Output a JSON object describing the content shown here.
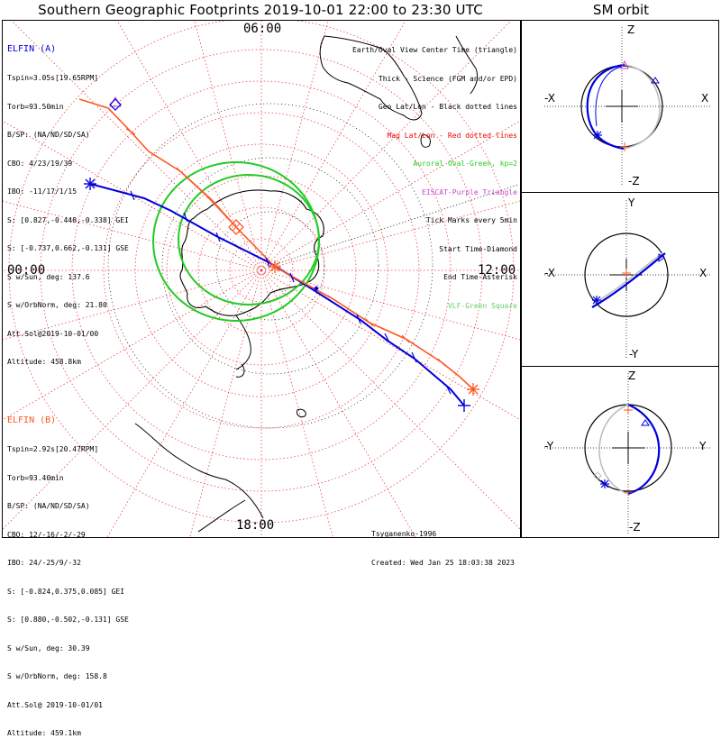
{
  "title": "Southern Geographic Footprints 2019-10-01 22:00 to 23:30 UTC",
  "sm_title": "SM orbit",
  "colors": {
    "elfin_a": "#0000dd",
    "elfin_b": "#ff5522",
    "oval": "#22cc22",
    "grid": "#ee4444",
    "eiscat": "#cc44cc",
    "vlf": "#66cc66"
  },
  "hour_labels": {
    "top": "06:00",
    "left": "00:00",
    "right": "12:00",
    "bottom": "18:00"
  },
  "elfin_a": {
    "name": "ELFIN (A)",
    "lines": [
      "Tspin=3.05s[19.65RPM]",
      "Torb=93.50min",
      "B/SP: (NA/ND/SD/SA)",
      "CBO: 4/23/19/39",
      "IBO: -11/17/1/15",
      "S: [0.827,-0.448,-0.338] GEI",
      "S: [-0.737,0.662,-0.131] GSE",
      "S w/Sun, deg: 137.6",
      "S w/OrbNorm, deg: 21.80",
      "Att.Sol@2019-10-01/00",
      "Altitude: 458.8km"
    ]
  },
  "elfin_b": {
    "name": "ELFIN (B)",
    "lines": [
      "Tspin=2.92s[20.47RPM]",
      "Torb=93.40min",
      "B/SP: (NA/ND/SD/SA)",
      "CBO: 12/-16/-2/-29",
      "IBO: 24/-25/9/-32",
      "S: [-0.824,0.375,0.085] GEI",
      "S: [0.880,-0.502,-0.131] GSE",
      "S w/Sun, deg: 30.39",
      "S w/OrbNorm, deg: 158.8",
      "Att.Sol@ 2019-10-01/01",
      "Altitude: 459.1km"
    ]
  },
  "legend": [
    {
      "text": "Earth/Oval View Center Time (triangle)",
      "color": "#000000"
    },
    {
      "text": "Thick - Science (FGM and/or EPD)",
      "color": "#000000"
    },
    {
      "text": "Geo Lat/Lon - Black dotted lines",
      "color": "#000000"
    },
    {
      "text": "Mag Lat/Lon - Red dotted lines",
      "color": "#ee0000"
    },
    {
      "text": "Auroral Oval-Green, kp=2",
      "color": "#22cc22"
    },
    {
      "text": "EISCAT-Purple Triangle",
      "color": "#cc44cc"
    },
    {
      "text": "Tick Marks every 5min",
      "color": "#000000"
    },
    {
      "text": "Start Time-Diamond",
      "color": "#000000"
    },
    {
      "text": "End Time-Asterisk",
      "color": "#000000"
    },
    {
      "text": "VLF-Green Square",
      "color": "#66cc66"
    }
  ],
  "credits": [
    "Tsyganenko-1996",
    "Created: Wed Jan 25 18:03:38 2023"
  ],
  "sm_panels": [
    {
      "top": "Z",
      "bottom": "-Z",
      "left": "-X",
      "right": "X"
    },
    {
      "top": "Y",
      "bottom": "-Y",
      "left": "-X",
      "right": "X"
    },
    {
      "top": "Z",
      "bottom": "-Z",
      "left": "-Y",
      "right": "Y"
    }
  ]
}
